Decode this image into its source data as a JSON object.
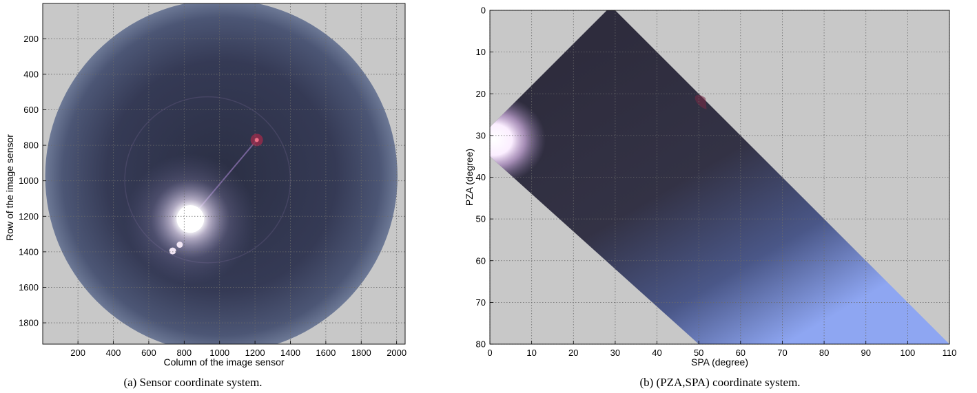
{
  "chart_data": [
    {
      "type": "heatmap",
      "caption": "(a) Sensor coordinate system.",
      "xlabel": "Column of the image sensor",
      "ylabel": "Row of the image sensor",
      "xlim": [
        1,
        2048
      ],
      "ylim": [
        1,
        1920
      ],
      "y_reversed": true,
      "grid": true,
      "xticks": [
        200,
        400,
        600,
        800,
        1000,
        1200,
        1400,
        1600,
        1800,
        2000
      ],
      "yticks": [
        200,
        400,
        600,
        800,
        1000,
        1200,
        1400,
        1600,
        1800
      ],
      "sky_disc": {
        "center_col": 1010,
        "center_row": 975,
        "radius": 995
      },
      "sun": {
        "col": 835,
        "row": 1215
      },
      "colors": {
        "background": "#c8c8c8",
        "sky_edge": "#6d7996",
        "sky_mid": "#2e3248",
        "sun": "#ffffff"
      }
    },
    {
      "type": "heatmap",
      "caption": "(b) (PZA,SPA) coordinate system.",
      "xlabel": "SPA (degree)",
      "ylabel": "PZA (degree)",
      "xlim": [
        0,
        110
      ],
      "ylim": [
        0,
        80
      ],
      "y_reversed": true,
      "grid": true,
      "xticks": [
        0,
        10,
        20,
        30,
        40,
        50,
        60,
        70,
        80,
        90,
        100,
        110
      ],
      "yticks": [
        0,
        10,
        20,
        30,
        40,
        50,
        60,
        70,
        80
      ],
      "region_outline": [
        [
          28,
          0
        ],
        [
          30,
          0
        ],
        [
          110,
          80
        ],
        [
          50,
          80
        ],
        [
          0,
          35
        ],
        [
          0,
          28
        ]
      ],
      "colors": {
        "background": "#c8c8c8",
        "dark": "#2d2b3c",
        "light": "#8ea6f2",
        "sun": "#ffffff"
      }
    }
  ]
}
